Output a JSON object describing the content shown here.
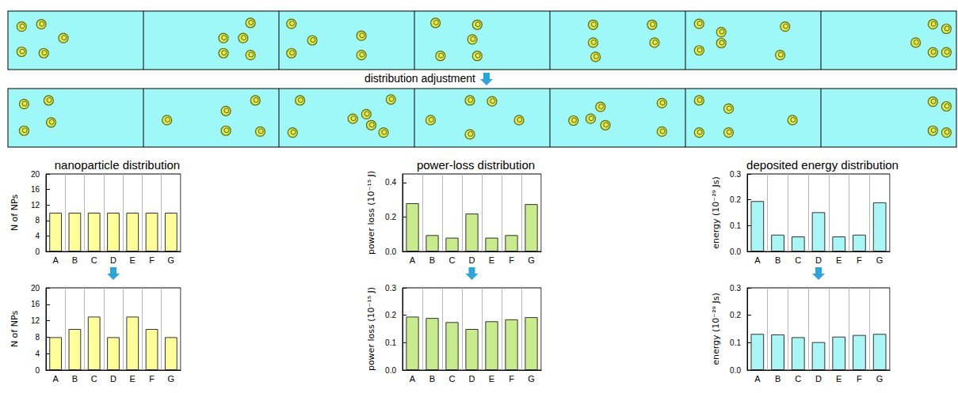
{
  "diagram": {
    "label": "distribution adjustment"
  },
  "chart_data": [
    {
      "type": "bar",
      "title": "nanoparticle distribution",
      "ylabel": "N of NPs",
      "categories": [
        "A",
        "B",
        "C",
        "D",
        "E",
        "F",
        "G"
      ],
      "values": [
        10,
        10,
        10,
        10,
        10,
        10,
        10
      ],
      "color": "#ffff99",
      "ylim": [
        0,
        20
      ],
      "yticks": [
        0,
        4,
        8,
        12,
        16,
        20
      ],
      "grid": true
    },
    {
      "type": "bar",
      "title": "power-loss distribution",
      "ylabel": "power loss (10⁻¹⁵ J)",
      "categories": [
        "A",
        "B",
        "C",
        "D",
        "E",
        "F",
        "G"
      ],
      "values": [
        0.28,
        0.095,
        0.08,
        0.22,
        0.08,
        0.095,
        0.275
      ],
      "color": "#c8ec8c",
      "ylim": [
        0,
        0.45
      ],
      "yticks": [
        {
          "value": 0,
          "label": "0.0"
        },
        0.2,
        0.4
      ],
      "grid": true
    },
    {
      "type": "bar",
      "title": "deposited energy distribution",
      "ylabel": "energy (10⁻²⁹ Js)",
      "categories": [
        "A",
        "B",
        "C",
        "D",
        "E",
        "F",
        "G"
      ],
      "values": [
        0.195,
        0.065,
        0.058,
        0.152,
        0.058,
        0.065,
        0.19
      ],
      "color": "#a8f6f6",
      "ylim": [
        0,
        0.3
      ],
      "yticks": [
        {
          "value": 0,
          "label": "0.0"
        },
        0.1,
        0.2,
        0.3
      ],
      "grid": true
    },
    {
      "type": "bar",
      "ylabel": "N of NPs",
      "categories": [
        "A",
        "B",
        "C",
        "D",
        "E",
        "F",
        "G"
      ],
      "values": [
        8,
        10,
        13,
        8,
        13,
        10,
        8
      ],
      "color": "#ffff99",
      "ylim": [
        0,
        20
      ],
      "yticks": [
        0,
        4,
        8,
        12,
        16,
        20
      ],
      "grid": true
    },
    {
      "type": "bar",
      "ylabel": "power loss (10⁻¹⁵ J)",
      "categories": [
        "A",
        "B",
        "C",
        "D",
        "E",
        "F",
        "G"
      ],
      "values": [
        0.195,
        0.19,
        0.175,
        0.15,
        0.178,
        0.185,
        0.193
      ],
      "color": "#c8ec8c",
      "ylim": [
        0,
        0.3
      ],
      "yticks": [
        {
          "value": 0,
          "label": "0.0"
        },
        0.1,
        0.2,
        0.3
      ],
      "grid": true
    },
    {
      "type": "bar",
      "ylabel": "energy (10⁻²⁹ Js)",
      "categories": [
        "A",
        "B",
        "C",
        "D",
        "E",
        "F",
        "G"
      ],
      "values": [
        0.132,
        0.13,
        0.12,
        0.102,
        0.122,
        0.128,
        0.132
      ],
      "color": "#a8f6f6",
      "ylim": [
        0,
        0.3
      ],
      "yticks": [
        {
          "value": 0,
          "label": "0.0"
        },
        0.1,
        0.2,
        0.3
      ],
      "grid": true
    }
  ]
}
